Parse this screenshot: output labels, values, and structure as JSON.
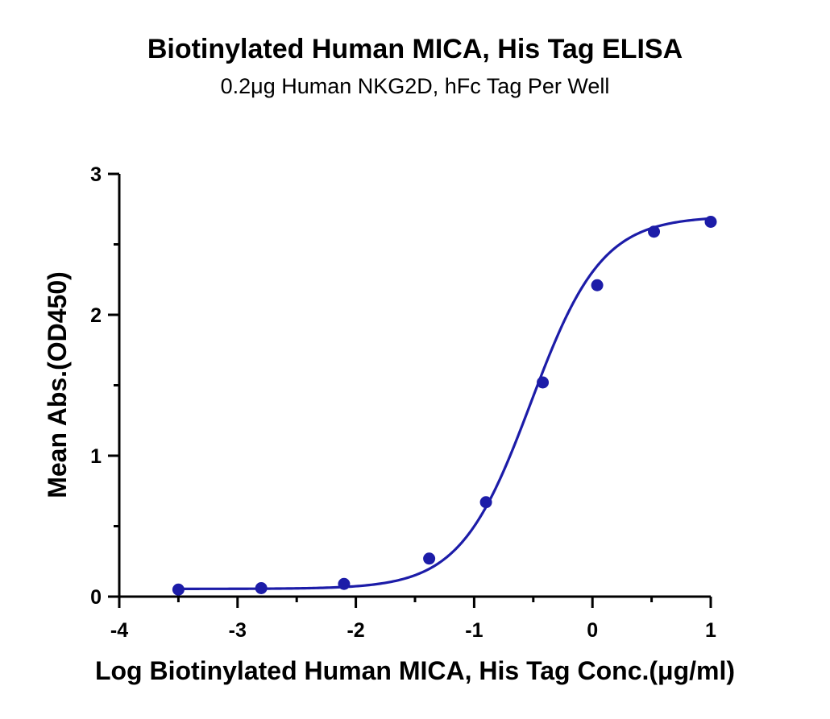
{
  "chart_data": {
    "type": "scatter",
    "title": "Biotinylated Human MICA, His Tag ELISA",
    "subtitle": "0.2μg Human NKG2D, hFc Tag Per Well",
    "xlabel": "Log Biotinylated Human MICA, His Tag Conc.(μg/ml)",
    "ylabel": "Mean Abs.(OD450)",
    "xlim": [
      -4,
      1
    ],
    "ylim": [
      0,
      3
    ],
    "xticks": [
      "-4",
      "-3",
      "-2",
      "-1",
      "0",
      "1"
    ],
    "yticks": [
      "0",
      "1",
      "2",
      "3"
    ],
    "grid": false,
    "legend": "none",
    "colors": {
      "series": "#1c1ca8"
    },
    "series": [
      {
        "x": [
          -3.5,
          -2.8,
          -2.1,
          -1.38,
          -0.9,
          -0.42,
          0.04,
          0.52,
          1.0
        ],
        "y": [
          0.05,
          0.06,
          0.09,
          0.27,
          0.67,
          1.52,
          2.21,
          2.59,
          2.66
        ],
        "fit": "4PL sigmoid curve"
      }
    ]
  }
}
